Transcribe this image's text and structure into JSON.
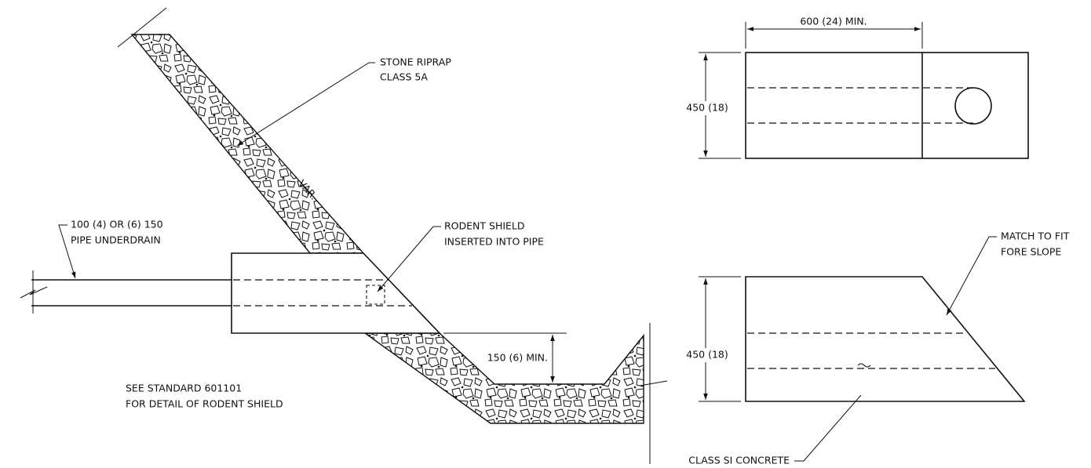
{
  "section_view": {
    "riprap_note": [
      "STONE RIPRAP",
      "CLASS 5A"
    ],
    "thickness_note": "VAR.",
    "pipe_note": [
      "100 (4) OR (6) 150",
      "PIPE UNDERDRAIN"
    ],
    "shield_note": [
      "RODENT SHIELD",
      "INSERTED INTO PIPE"
    ],
    "depth_dimension": "150 (6) MIN.",
    "reference_note": [
      "SEE STANDARD 601101",
      "FOR DETAIL OF RODENT SHIELD"
    ]
  },
  "plan_view": {
    "length_dimension": "600 (24) MIN.",
    "height_dimension": "450 (18)"
  },
  "elevation_view": {
    "height_dimension": "450 (18)",
    "slope_note": [
      "MATCH TO FIT",
      "FORE SLOPE"
    ],
    "material_note": "CLASS SI CONCRETE"
  }
}
